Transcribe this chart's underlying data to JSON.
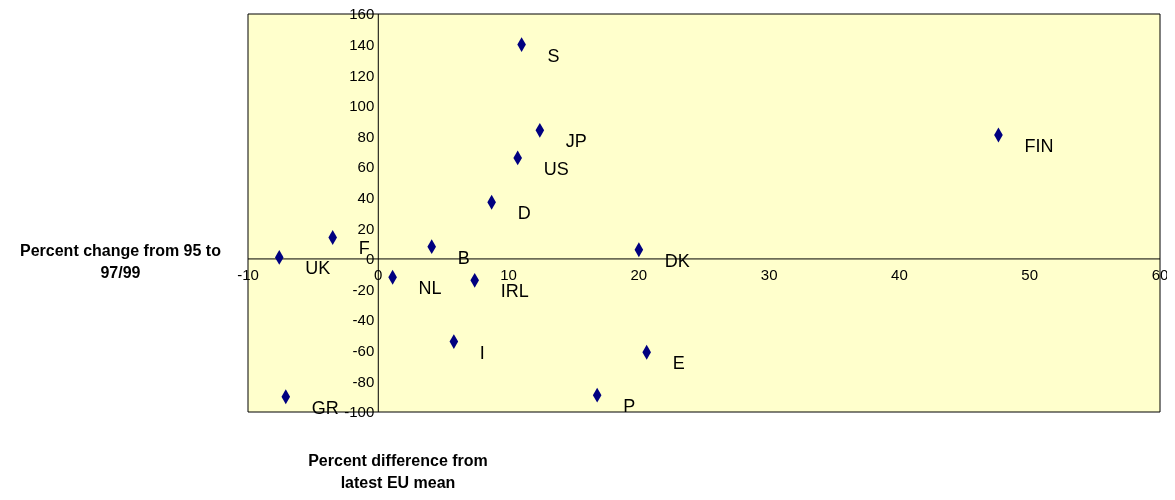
{
  "chart_data": {
    "type": "scatter",
    "xlabel": "Percent difference from latest EU mean",
    "ylabel": "Percent change from 95 to 97/99",
    "x": [
      11,
      12.4,
      10.7,
      8.7,
      4.1,
      -3.5,
      -7.6,
      1.1,
      7.4,
      5.8,
      -7.1,
      16.8,
      20.6,
      20,
      47.6
    ],
    "values": [
      140,
      84,
      66,
      37,
      8,
      14,
      1,
      -12,
      -14,
      -54,
      -90,
      -89,
      -61,
      6,
      81
    ],
    "color": "#000080",
    "marker": "diamond",
    "annotations": [
      {
        "text": "S",
        "x": 11,
        "y": 140
      },
      {
        "text": "JP",
        "x": 12.4,
        "y": 84
      },
      {
        "text": "US",
        "x": 10.7,
        "y": 66
      },
      {
        "text": "D",
        "x": 8.7,
        "y": 37
      },
      {
        "text": "B",
        "x": 4.1,
        "y": 8
      },
      {
        "text": "F",
        "x": -3.5,
        "y": 14
      },
      {
        "text": "UK",
        "x": -7.6,
        "y": 1
      },
      {
        "text": "NL",
        "x": 1.1,
        "y": -12
      },
      {
        "text": "IRL",
        "x": 7.4,
        "y": -14
      },
      {
        "text": "I",
        "x": 5.8,
        "y": -54
      },
      {
        "text": "GR",
        "x": -7.1,
        "y": -90
      },
      {
        "text": "P",
        "x": 16.8,
        "y": -89
      },
      {
        "text": "E",
        "x": 20.6,
        "y": -61
      },
      {
        "text": "DK",
        "x": 20,
        "y": 6
      },
      {
        "text": "FIN",
        "x": 47.6,
        "y": 81
      }
    ],
    "xlim": [
      -10,
      60
    ],
    "xticks": [
      -10,
      0,
      10,
      20,
      30,
      40,
      50,
      60
    ],
    "ylim": [
      -100,
      160
    ],
    "yticks": [
      -100,
      -80,
      -60,
      -40,
      -20,
      0,
      20,
      40,
      60,
      80,
      100,
      120,
      140,
      160
    ],
    "grid": false,
    "legend": false
  }
}
